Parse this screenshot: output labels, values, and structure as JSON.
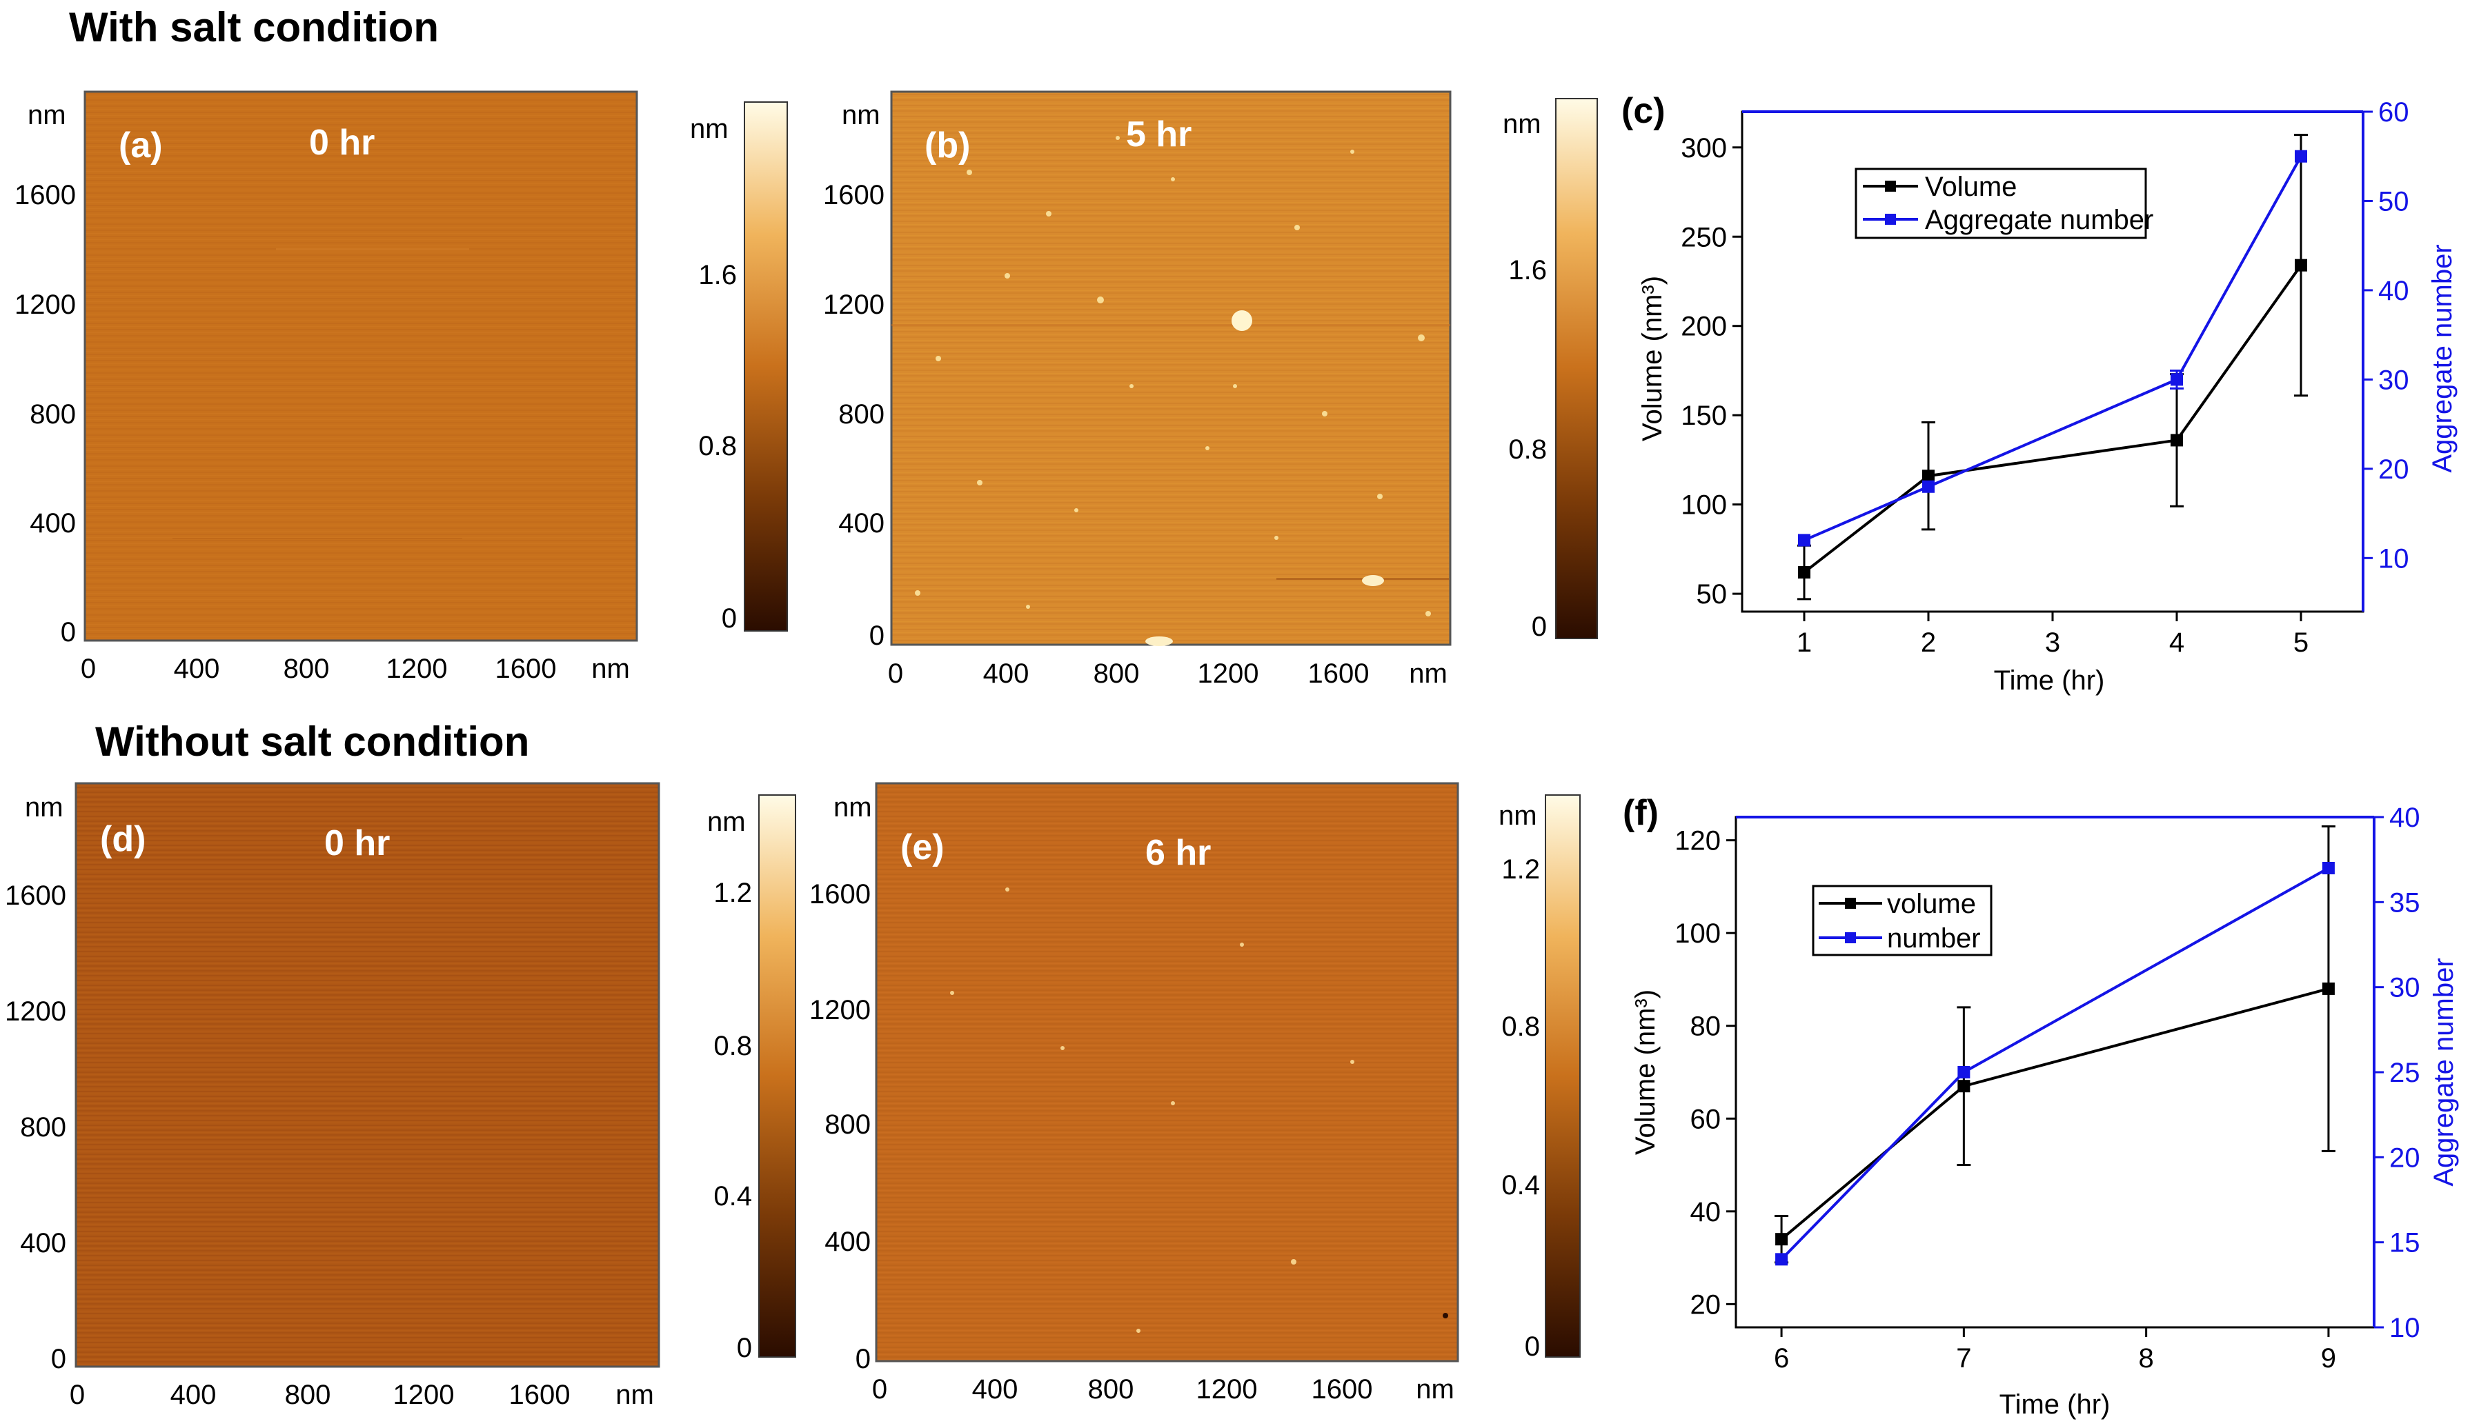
{
  "sections": {
    "with_salt": "With salt condition",
    "without_salt": "Without salt condition"
  },
  "colors": {
    "volume": "#000000",
    "aggregate": "#1414e6",
    "afm_dark": "#2a0c00",
    "afm_mid": "#c9711c",
    "afm_light": "#fffbe6"
  },
  "afm_images": [
    {
      "id": "a",
      "label": "(a)",
      "time": "0 hr",
      "y_ticks": [
        "nm",
        "1600",
        "1200",
        "800",
        "400",
        "0"
      ],
      "x_ticks": [
        "0",
        "400",
        "800",
        "1200",
        "1600",
        "nm"
      ],
      "scale_label": "nm",
      "scale_ticks": [
        "1.6",
        "0.8",
        "0"
      ]
    },
    {
      "id": "b",
      "label": "(b)",
      "time": "5 hr",
      "y_ticks": [
        "nm",
        "1600",
        "1200",
        "800",
        "400",
        "0"
      ],
      "x_ticks": [
        "0",
        "400",
        "800",
        "1200",
        "1600",
        "nm"
      ],
      "scale_label": "nm",
      "scale_ticks": [
        "1.6",
        "0.8",
        "0"
      ]
    },
    {
      "id": "d",
      "label": "(d)",
      "time": "0 hr",
      "y_ticks": [
        "nm",
        "1600",
        "1200",
        "800",
        "400",
        "0"
      ],
      "x_ticks": [
        "0",
        "400",
        "800",
        "1200",
        "1600",
        "nm"
      ],
      "scale_label": "nm",
      "scale_ticks": [
        "1.2",
        "0.8",
        "0.4",
        "0"
      ]
    },
    {
      "id": "e",
      "label": "(e)",
      "time": "6 hr",
      "y_ticks": [
        "nm",
        "1600",
        "1200",
        "800",
        "400",
        "0"
      ],
      "x_ticks": [
        "0",
        "400",
        "800",
        "1200",
        "1600",
        "nm"
      ],
      "scale_label": "nm",
      "scale_ticks": [
        "1.2",
        "0.8",
        "0.4",
        "0"
      ]
    }
  ],
  "chart_data": [
    {
      "type": "line",
      "panel": "(c)",
      "x": [
        1,
        2,
        4,
        5
      ],
      "x_ticks": [
        1,
        2,
        3,
        4,
        5
      ],
      "xlim": [
        0.5,
        5.5
      ],
      "xlabel": "Time (hr)",
      "ylabel_left": "Volume (nm³)",
      "ylabel_right": "Aggregate number",
      "ylim_left": [
        40,
        320
      ],
      "ylim_right": [
        4,
        60
      ],
      "yticks_left": [
        50,
        100,
        150,
        200,
        250,
        300
      ],
      "yticks_right": [
        10,
        20,
        30,
        40,
        50,
        60
      ],
      "legend_position": "top-center",
      "series": [
        {
          "name": "Volume",
          "axis": "left",
          "values": [
            62,
            116,
            136,
            234
          ],
          "errors": [
            15,
            30,
            37,
            73
          ]
        },
        {
          "name": "Aggregate number",
          "axis": "right",
          "values": [
            12,
            18,
            30,
            55
          ],
          "errors": [
            0,
            0,
            1,
            0
          ]
        }
      ]
    },
    {
      "type": "line",
      "panel": "(f)",
      "x": [
        6,
        7,
        9
      ],
      "x_ticks": [
        6,
        7,
        8,
        9
      ],
      "xlim": [
        5.75,
        9.25
      ],
      "xlabel": "Time (hr)",
      "ylabel_left": "Volume (nm³)",
      "ylabel_right": "Aggregate number",
      "ylim_left": [
        15,
        125
      ],
      "ylim_right": [
        10,
        40
      ],
      "yticks_left": [
        20,
        40,
        60,
        80,
        100,
        120
      ],
      "yticks_right": [
        10,
        15,
        20,
        25,
        30,
        35,
        40
      ],
      "legend_position": "top-left",
      "series": [
        {
          "name": "volume",
          "axis": "left",
          "values": [
            34,
            67,
            88
          ],
          "errors": [
            5,
            17,
            35
          ]
        },
        {
          "name": "number",
          "axis": "right",
          "values": [
            14,
            25,
            37
          ],
          "errors": [
            0,
            0,
            0
          ]
        }
      ]
    }
  ]
}
